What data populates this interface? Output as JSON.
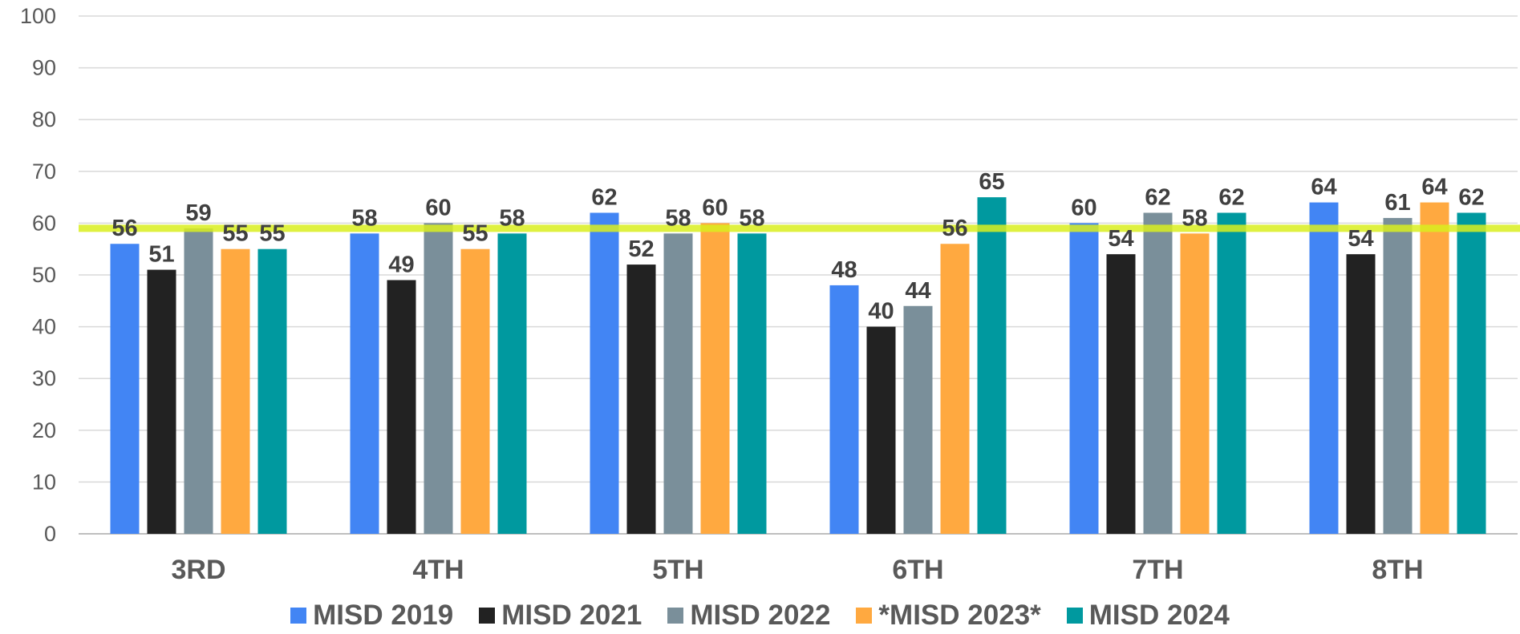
{
  "chart_data": {
    "type": "bar",
    "categories": [
      "3RD",
      "4TH",
      "5TH",
      "6TH",
      "7TH",
      "8TH"
    ],
    "series": [
      {
        "name": "MISD 2019",
        "color": "#4285f4",
        "values": [
          56,
          58,
          62,
          48,
          60,
          64
        ]
      },
      {
        "name": "MISD 2021",
        "color": "#222222",
        "values": [
          51,
          49,
          52,
          40,
          54,
          54
        ]
      },
      {
        "name": "MISD 2022",
        "color": "#7a8f9a",
        "values": [
          59,
          60,
          58,
          44,
          62,
          61
        ]
      },
      {
        "name": "*MISD 2023*",
        "color": "#ffa940",
        "values": [
          55,
          55,
          60,
          56,
          58,
          64
        ]
      },
      {
        "name": "MISD 2024",
        "color": "#00999f",
        "values": [
          55,
          58,
          58,
          65,
          62,
          62
        ]
      }
    ],
    "ylim": [
      0,
      100
    ],
    "yticks": [
      0,
      10,
      20,
      30,
      40,
      50,
      60,
      70,
      80,
      90,
      100
    ],
    "reference_line": {
      "value": 59,
      "color": "#d9ef1f"
    },
    "grid": true,
    "legend_position": "bottom"
  }
}
